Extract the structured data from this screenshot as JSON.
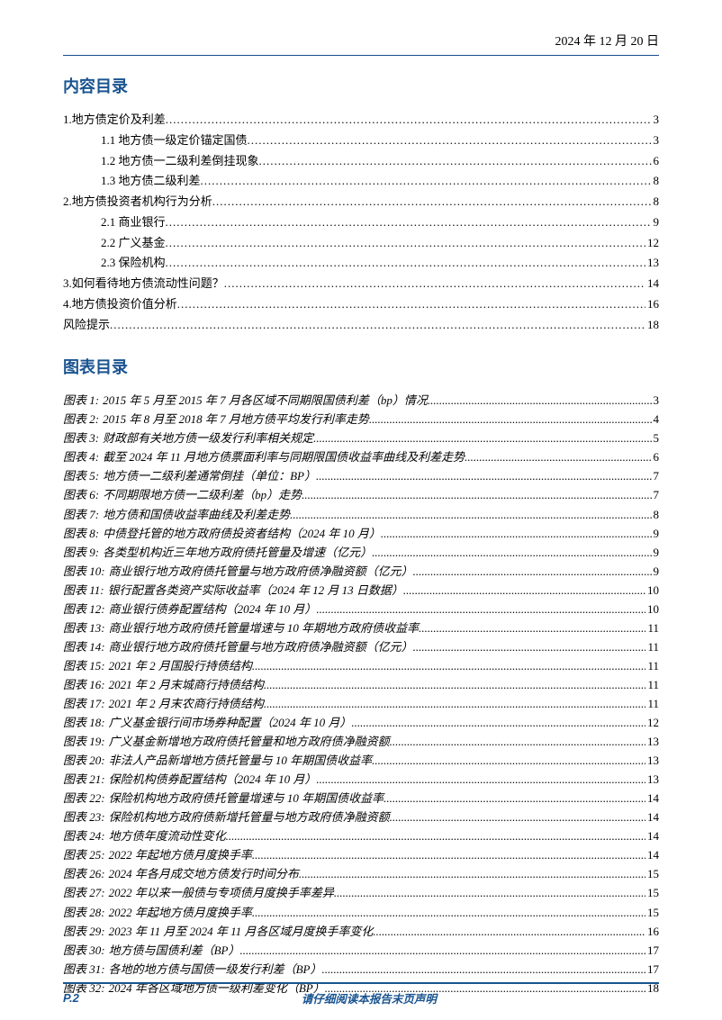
{
  "header_date": "2024 年 12 月 20 日",
  "toc_title": "内容目录",
  "figures_title": "图表目录",
  "toc": [
    {
      "label": "1.地方债定价及利差",
      "page": "3",
      "indent": 0
    },
    {
      "label": "1.1 地方债一级定价锚定国债",
      "page": "3",
      "indent": 1
    },
    {
      "label": "1.2 地方债一二级利差倒挂现象",
      "page": "6",
      "indent": 1
    },
    {
      "label": "1.3 地方债二级利差",
      "page": "8",
      "indent": 1
    },
    {
      "label": "2.地方债投资者机构行为分析",
      "page": "8",
      "indent": 0
    },
    {
      "label": "2.1 商业银行",
      "page": "9",
      "indent": 1
    },
    {
      "label": "2.2 广义基金",
      "page": "12",
      "indent": 1
    },
    {
      "label": "2.3 保险机构",
      "page": "13",
      "indent": 1
    },
    {
      "label": "3.如何看待地方债流动性问题？",
      "page": "14",
      "indent": 0
    },
    {
      "label": "4.地方债投资价值分析",
      "page": "16",
      "indent": 0
    },
    {
      "label": "风险提示",
      "page": "18",
      "indent": 0
    }
  ],
  "figures": [
    {
      "n": "1",
      "t": "2015 年 5 月至 2015 年 7 月各区域不同期限国债利差（bp）情况",
      "p": "3"
    },
    {
      "n": "2",
      "t": "2015 年 8 月至 2018 年 7 月地方债平均发行利率走势",
      "p": "4"
    },
    {
      "n": "3",
      "t": "财政部有关地方债一级发行利率相关规定",
      "p": "5"
    },
    {
      "n": "4",
      "t": "截至 2024 年 11 月地方债票面利率与同期限国债收益率曲线及利差走势",
      "p": "6"
    },
    {
      "n": "5",
      "t": "地方债一二级利差通常倒挂（单位：BP）",
      "p": "7"
    },
    {
      "n": "6",
      "t": "不同期限地方债一二级利差（bp）走势",
      "p": "7"
    },
    {
      "n": "7",
      "t": "地方债和国债收益率曲线及利差走势",
      "p": "8"
    },
    {
      "n": "8",
      "t": "中债登托管的地方政府债投资者结构（2024 年 10 月）",
      "p": "9"
    },
    {
      "n": "9",
      "t": "各类型机构近三年地方政府债托管量及增速（亿元）",
      "p": "9"
    },
    {
      "n": "10",
      "t": "商业银行地方政府债托管量与地方政府债净融资额（亿元）",
      "p": "9"
    },
    {
      "n": "11",
      "t": "银行配置各类资产实际收益率（2024 年 12 月 13 日数据）",
      "p": "10"
    },
    {
      "n": "12",
      "t": "商业银行债券配置结构（2024 年 10 月）",
      "p": "10"
    },
    {
      "n": "13",
      "t": "商业银行地方政府债托管量增速与 10 年期地方政府债收益率",
      "p": "11"
    },
    {
      "n": "14",
      "t": "商业银行地方政府债托管量与地方政府债净融资额（亿元）",
      "p": "11"
    },
    {
      "n": "15",
      "t": "2021 年 2 月国股行持债结构",
      "p": "11"
    },
    {
      "n": "16",
      "t": "2021 年 2 月末城商行持债结构",
      "p": "11"
    },
    {
      "n": "17",
      "t": "2021 年 2 月末农商行持债结构",
      "p": "11"
    },
    {
      "n": "18",
      "t": "广义基金银行间市场券种配置（2024 年 10 月）",
      "p": "12"
    },
    {
      "n": "19",
      "t": "广义基金新增地方政府债托管量和地方政府债净融资额",
      "p": "13"
    },
    {
      "n": "20",
      "t": "非法人产品新增地方债托管量与 10 年期国债收益率",
      "p": "13"
    },
    {
      "n": "21",
      "t": "保险机构债券配置结构（2024 年 10 月）",
      "p": "13"
    },
    {
      "n": "22",
      "t": "保险机构地方政府债托管量增速与 10 年期国债收益率",
      "p": "14"
    },
    {
      "n": "23",
      "t": "保险机构地方政府债新增托管量与地方政府债净融资额",
      "p": "14"
    },
    {
      "n": "24",
      "t": "地方债年度流动性变化",
      "p": "14"
    },
    {
      "n": "25",
      "t": "2022 年起地方债月度换手率",
      "p": "14"
    },
    {
      "n": "26",
      "t": "2024 年各月成交地方债发行时间分布",
      "p": "15"
    },
    {
      "n": "27",
      "t": "2022 年以来一般债与专项债月度换手率差异",
      "p": "15"
    },
    {
      "n": "28",
      "t": "2022 年起地方债月度换手率",
      "p": "15"
    },
    {
      "n": "29",
      "t": "2023 年 11 月至 2024 年 11 月各区域月度换手率变化",
      "p": "16"
    },
    {
      "n": "30",
      "t": "地方债与国债利差（BP）",
      "p": "17"
    },
    {
      "n": "31",
      "t": "各地的地方债与国债一级发行利差（BP）",
      "p": "17"
    },
    {
      "n": "32",
      "t": "2024 年各区域地方债一级利差变化（BP）",
      "p": "18"
    }
  ],
  "footer": {
    "page_number": "P.2",
    "disclaimer": "请仔细阅读本报告末页声明"
  },
  "colors": {
    "accent": "#1a5490",
    "text": "#000000"
  }
}
